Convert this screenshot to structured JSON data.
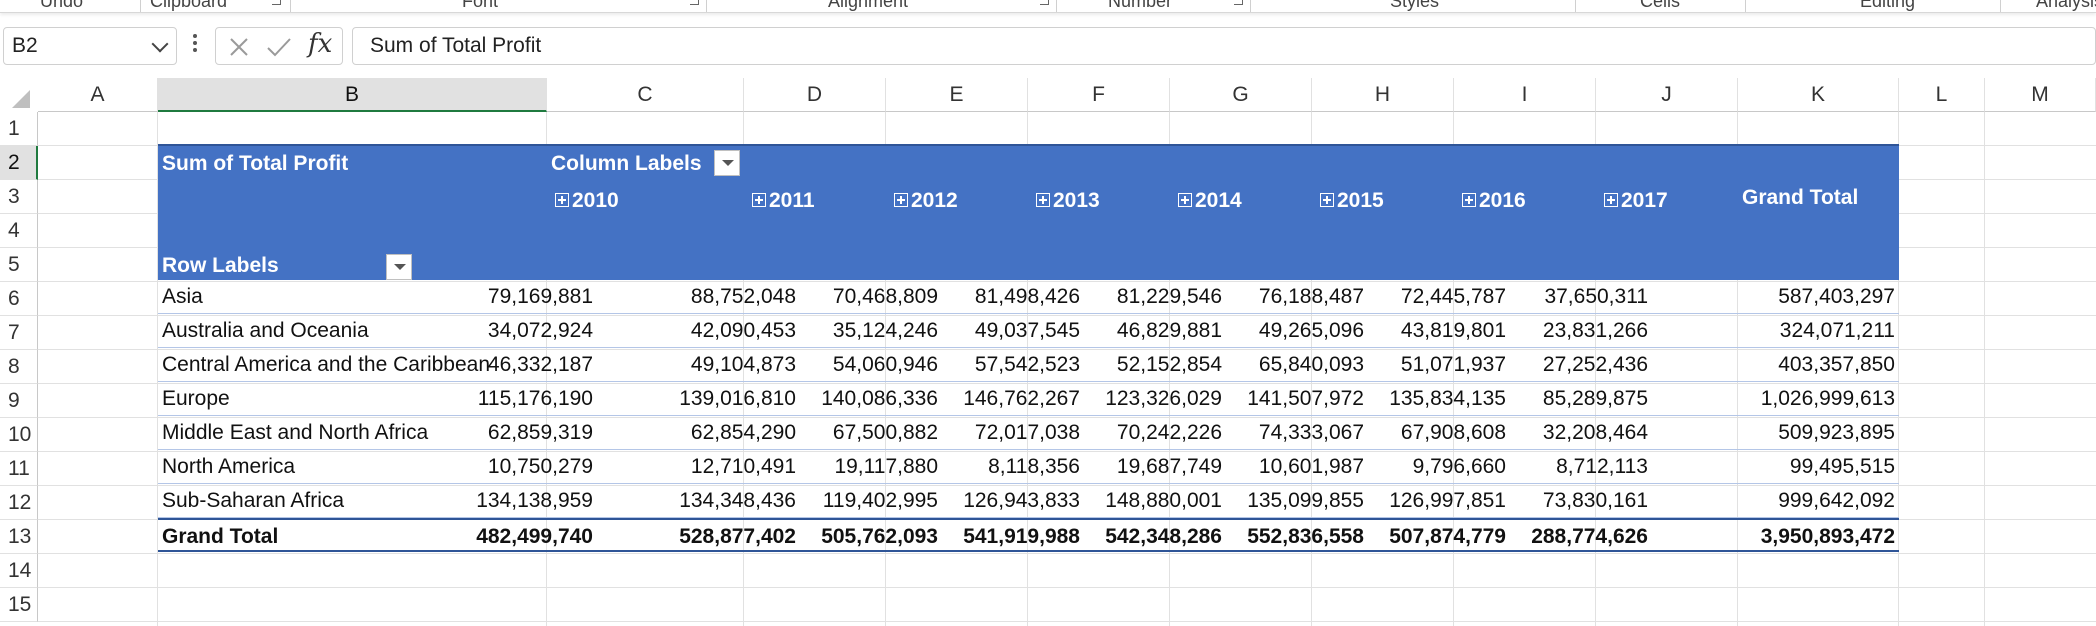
{
  "ribbon": {
    "groups": [
      "Undo",
      "Clipboard",
      "Font",
      "Alignment",
      "Number",
      "Styles",
      "Cells",
      "Editing",
      "Analysis"
    ]
  },
  "formula_bar": {
    "name_box": "B2",
    "fx_label": "fx",
    "content": "Sum of Total Profit"
  },
  "grid": {
    "columns": [
      "A",
      "B",
      "C",
      "D",
      "E",
      "F",
      "G",
      "H",
      "I",
      "J",
      "K",
      "L",
      "M"
    ],
    "rows": [
      "1",
      "2",
      "3",
      "4",
      "5",
      "6",
      "7",
      "8",
      "9",
      "10",
      "11",
      "12",
      "13",
      "14",
      "15"
    ],
    "selected_column": "B",
    "selected_row": "2"
  },
  "pivot": {
    "value_label": "Sum of Total Profit",
    "column_labels": "Column Labels",
    "row_labels": "Row Labels",
    "years": [
      "2010",
      "2011",
      "2012",
      "2013",
      "2014",
      "2015",
      "2016",
      "2017"
    ],
    "grand_total_header": "Grand Total",
    "rows": [
      {
        "label": "Asia",
        "values": [
          "79,169,881",
          "88,752,048",
          "70,468,809",
          "81,498,426",
          "81,229,546",
          "76,188,487",
          "72,445,787",
          "37,650,311",
          "587,403,297"
        ]
      },
      {
        "label": "Australia and Oceania",
        "values": [
          "34,072,924",
          "42,090,453",
          "35,124,246",
          "49,037,545",
          "46,829,881",
          "49,265,096",
          "43,819,801",
          "23,831,266",
          "324,071,211"
        ]
      },
      {
        "label": "Central America and the Caribbean",
        "values": [
          "46,332,187",
          "49,104,873",
          "54,060,946",
          "57,542,523",
          "52,152,854",
          "65,840,093",
          "51,071,937",
          "27,252,436",
          "403,357,850"
        ]
      },
      {
        "label": "Europe",
        "values": [
          "115,176,190",
          "139,016,810",
          "140,086,336",
          "146,762,267",
          "123,326,029",
          "141,507,972",
          "135,834,135",
          "85,289,875",
          "1,026,999,613"
        ]
      },
      {
        "label": "Middle East and North Africa",
        "values": [
          "62,859,319",
          "62,854,290",
          "67,500,882",
          "72,017,038",
          "70,242,226",
          "74,333,067",
          "67,908,608",
          "32,208,464",
          "509,923,895"
        ]
      },
      {
        "label": "North America",
        "values": [
          "10,750,279",
          "12,710,491",
          "19,117,880",
          "8,118,356",
          "19,687,749",
          "10,601,987",
          "9,796,660",
          "8,712,113",
          "99,495,515"
        ]
      },
      {
        "label": "Sub-Saharan Africa",
        "values": [
          "134,138,959",
          "134,348,436",
          "119,402,995",
          "126,943,833",
          "148,880,001",
          "135,099,855",
          "126,997,851",
          "73,830,161",
          "999,642,092"
        ]
      }
    ],
    "grand_total": {
      "label": "Grand Total",
      "values": [
        "482,499,740",
        "528,877,402",
        "505,762,093",
        "541,919,988",
        "542,348,286",
        "552,836,558",
        "507,874,779",
        "288,774,626",
        "3,950,893,472"
      ]
    }
  },
  "colors": {
    "pivot_header": "#4472c4",
    "pivot_border": "#2f5597",
    "selection": "#1f7a3f"
  }
}
